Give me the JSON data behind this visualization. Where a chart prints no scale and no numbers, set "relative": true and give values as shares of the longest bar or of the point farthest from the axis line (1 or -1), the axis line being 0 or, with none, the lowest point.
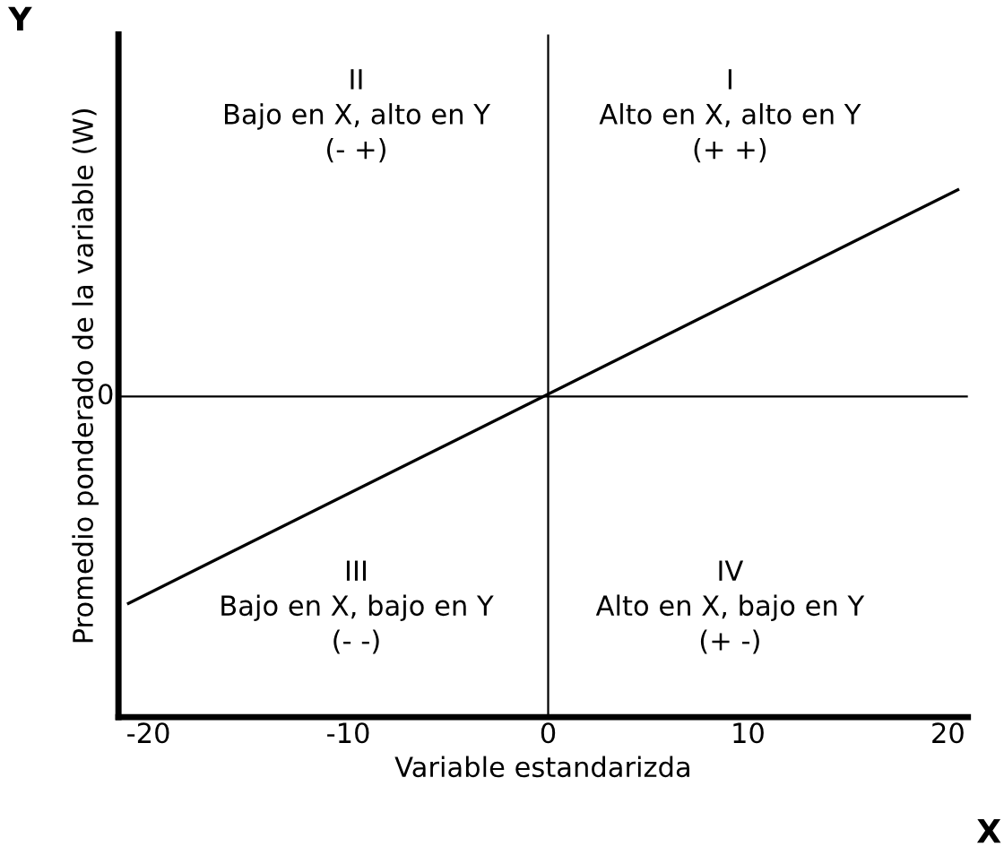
{
  "chart_data": {
    "type": "line",
    "xlabel": "Variable estandarizda",
    "ylabel": "Promedio ponderado de la variable (W)",
    "x": [
      -21,
      20.5
    ],
    "series": [
      {
        "color": "#000000",
        "values": [
          -1,
          1
        ]
      }
    ],
    "relative": true,
    "xlim": [
      -21.5,
      21
    ],
    "xticks": [
      -20,
      -10,
      0,
      10,
      20
    ],
    "ref_lines": [
      {
        "axis": "x",
        "value": 0,
        "color": "#000000"
      },
      {
        "axis": "y",
        "value": 0,
        "label": "0",
        "color": "#000000"
      }
    ],
    "annotations": [
      "II\nBajo en X, alto en Y\n(- +)",
      "I\nAlto en X, alto en Y\n(+ +)",
      "III\nBajo en X, bajo en Y\n(- -)",
      "IV\nAlto en X, bajo en Y\n(+ -)",
      "X",
      "Y"
    ],
    "grid": false,
    "legend": false,
    "marker": "none",
    "line_style": "solid"
  }
}
